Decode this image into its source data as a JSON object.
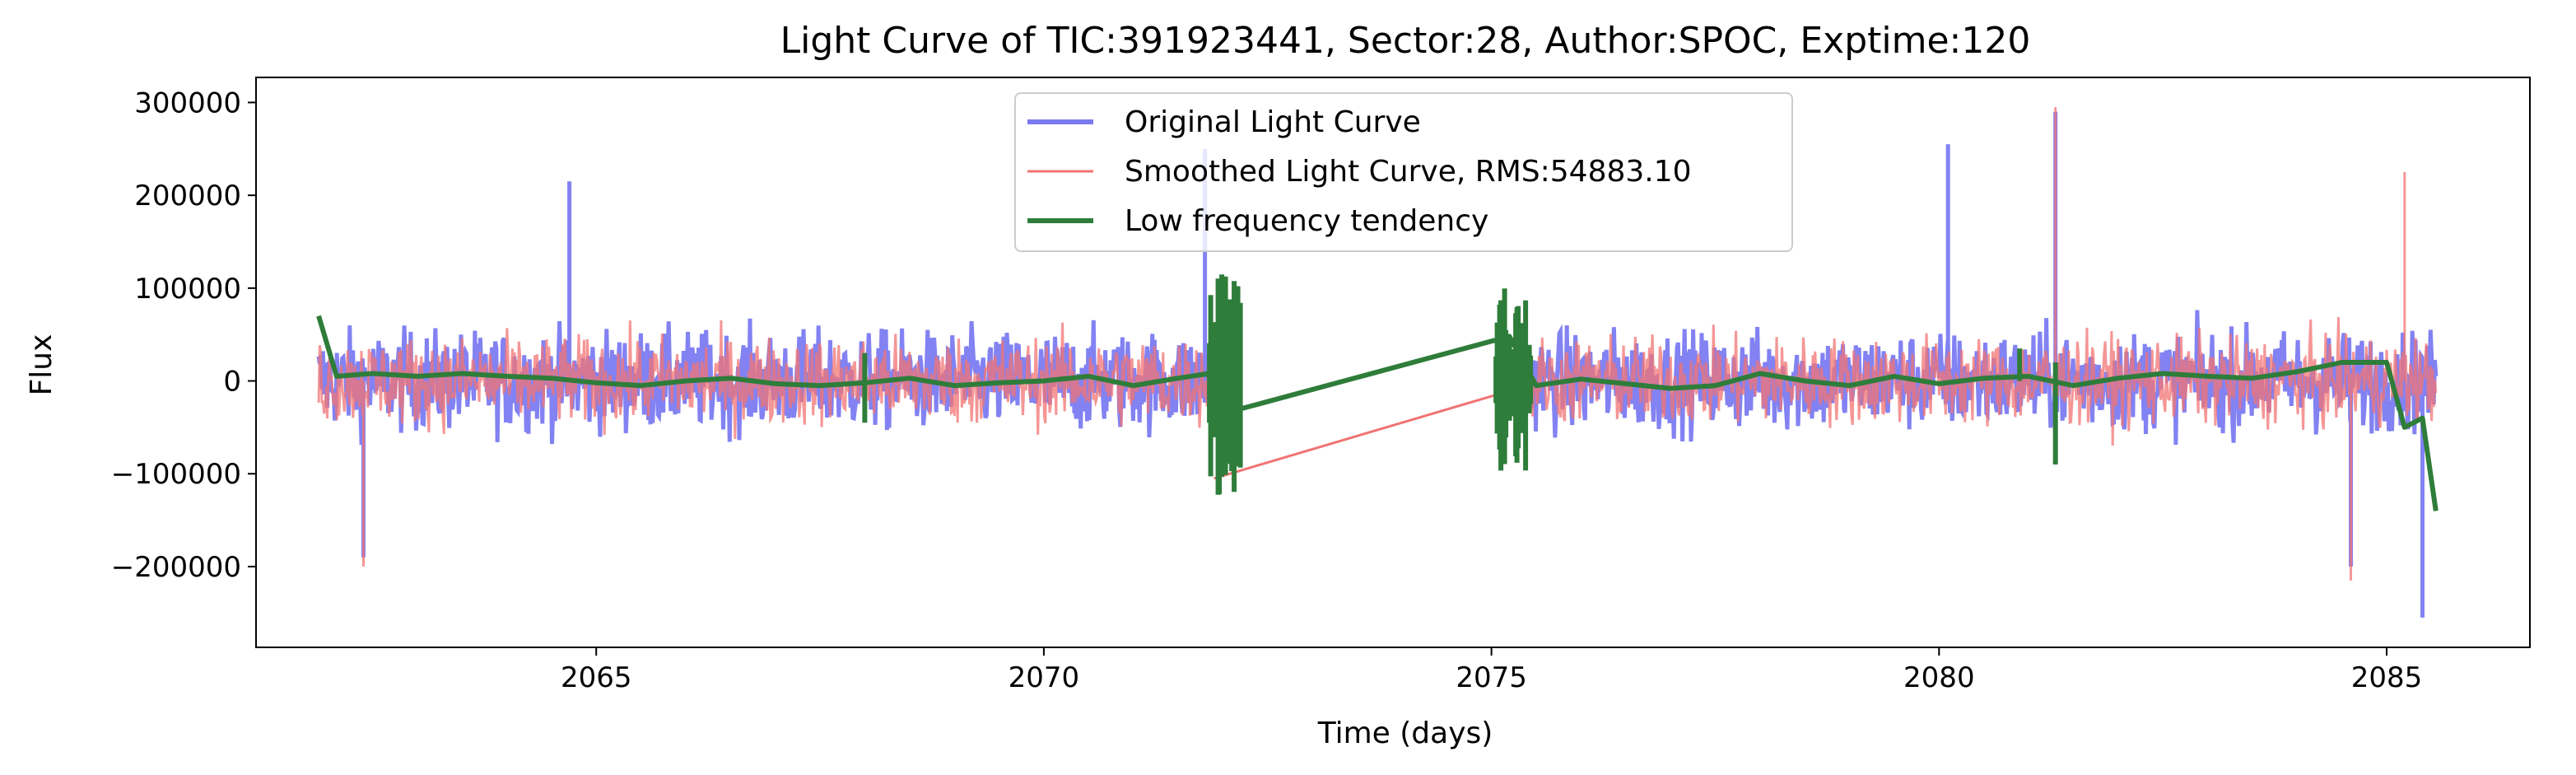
{
  "chart_data": {
    "type": "line",
    "title": "Light Curve of TIC:391923441, Sector:28, Author:SPOC, Exptime:120",
    "xlabel": "Time (days)",
    "ylabel": "Flux",
    "xlim": [
      2061.2,
      2086.6
    ],
    "ylim": [
      -287000,
      327000
    ],
    "xticks": [
      2065,
      2070,
      2075,
      2080,
      2085
    ],
    "xtick_labels": [
      "2065",
      "2070",
      "2075",
      "2080",
      "2085"
    ],
    "yticks": [
      -200000,
      -100000,
      0,
      100000,
      200000,
      300000
    ],
    "ytick_labels": [
      "−200000",
      "−100000",
      "0",
      "100000",
      "200000",
      "300000"
    ],
    "grid": false,
    "legend_position": "upper center",
    "series": [
      {
        "name": "Original Light Curve",
        "color": "#7b7bf2",
        "style": "thick noisy line (~±100000 scatter about 0)",
        "segments": [
          [
            2061.9,
            2071.85
          ],
          [
            2075.4,
            2085.55
          ]
        ],
        "notable_points": [
          [
            2064.7,
            215000
          ],
          [
            2071.8,
            250000
          ],
          [
            2080.1,
            255000
          ],
          [
            2081.3,
            290000
          ],
          [
            2062.4,
            -190000
          ],
          [
            2084.6,
            -200000
          ],
          [
            2085.4,
            -255000
          ]
        ]
      },
      {
        "name": "Smoothed Light Curve, RMS:54883.10",
        "color": "#f17373",
        "style": "thin noisy line (~±90000 scatter about 0)",
        "segments": [
          [
            2061.9,
            2071.85
          ],
          [
            2075.4,
            2085.55
          ]
        ],
        "notable_points": [
          [
            2081.3,
            295000
          ],
          [
            2085.2,
            225000
          ],
          [
            2062.4,
            -200000
          ],
          [
            2084.6,
            -215000
          ]
        ]
      },
      {
        "name": "Low frequency tendency",
        "color": "#2e7d3a",
        "style": "thick smooth trend",
        "x": [
          2061.9,
          2062.1,
          2062.5,
          2063.0,
          2063.5,
          2064.0,
          2064.5,
          2065.0,
          2065.5,
          2066.0,
          2066.5,
          2067.0,
          2067.5,
          2068.0,
          2068.5,
          2069.0,
          2069.5,
          2070.0,
          2070.5,
          2071.0,
          2071.5,
          2071.85,
          2072.2,
          2075.2,
          2075.5,
          2076.0,
          2076.5,
          2077.0,
          2077.5,
          2078.0,
          2078.5,
          2079.0,
          2079.5,
          2080.0,
          2080.5,
          2081.0,
          2081.5,
          2082.0,
          2082.5,
          2083.0,
          2083.5,
          2084.0,
          2084.5,
          2085.0,
          2085.2,
          2085.4,
          2085.55
        ],
        "y": [
          70000,
          5000,
          8000,
          5000,
          8000,
          5000,
          3000,
          -2000,
          -5000,
          0,
          3000,
          -3000,
          -5000,
          -2000,
          3000,
          -5000,
          -2000,
          0,
          5000,
          -5000,
          3000,
          8000,
          -30000,
          48000,
          -5000,
          2000,
          -3000,
          -8000,
          -5000,
          8000,
          0,
          -5000,
          5000,
          -3000,
          3000,
          5000,
          -5000,
          3000,
          8000,
          5000,
          3000,
          10000,
          20000,
          20000,
          -50000,
          -40000,
          -140000
        ]
      }
    ]
  }
}
